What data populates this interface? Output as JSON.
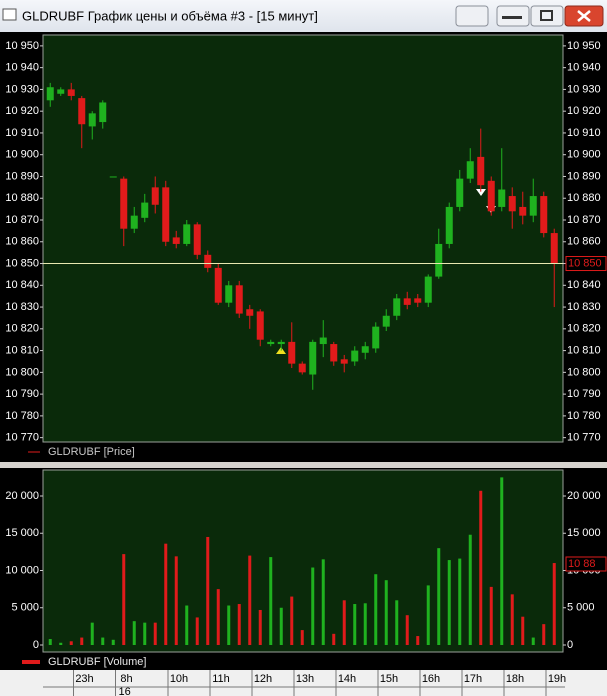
{
  "window": {
    "title": "GLDRUBF График цены и объёма #3 - [15 минут]"
  },
  "chart_data": [
    {
      "type": "candlestick",
      "legend": "GLDRUBF [Price]",
      "up_color": "#1fb21f",
      "down_color": "#e01b1b",
      "ylim": [
        10768,
        10955
      ],
      "yticks": [
        {
          "value": 10770,
          "label": "10 770"
        },
        {
          "value": 10780,
          "label": "10 780"
        },
        {
          "value": 10790,
          "label": "10 790"
        },
        {
          "value": 10800,
          "label": "10 800"
        },
        {
          "value": 10810,
          "label": "10 810"
        },
        {
          "value": 10820,
          "label": "10 820"
        },
        {
          "value": 10830,
          "label": "10 830"
        },
        {
          "value": 10840,
          "label": "10 840"
        },
        {
          "value": 10850,
          "label": "10 850"
        },
        {
          "value": 10860,
          "label": "10 860"
        },
        {
          "value": 10870,
          "label": "10 870"
        },
        {
          "value": 10880,
          "label": "10 880"
        },
        {
          "value": 10890,
          "label": "10 890"
        },
        {
          "value": 10900,
          "label": "10 900"
        },
        {
          "value": 10910,
          "label": "10 910"
        },
        {
          "value": 10920,
          "label": "10 920"
        },
        {
          "value": 10930,
          "label": "10 930"
        },
        {
          "value": 10940,
          "label": "10 940"
        },
        {
          "value": 10950,
          "label": "10 950"
        }
      ],
      "last_price": {
        "value": 10850,
        "label": "10 850"
      },
      "categories": [
        null,
        null,
        null,
        "23h",
        null,
        null,
        null,
        "8h",
        null,
        null,
        null,
        null,
        "10h",
        null,
        null,
        null,
        "11h",
        null,
        null,
        null,
        "12h",
        null,
        null,
        null,
        "13h",
        null,
        null,
        null,
        "14h",
        null,
        null,
        null,
        "15h",
        null,
        null,
        null,
        "16h",
        null,
        null,
        null,
        "17h",
        null,
        null,
        null,
        "18h",
        null,
        null,
        null,
        "19h"
      ],
      "dates": [
        null,
        null,
        null,
        null,
        null,
        null,
        null,
        "16",
        null,
        null,
        null,
        null,
        null,
        null,
        null,
        null,
        null,
        null,
        null,
        null,
        null,
        null,
        null,
        null,
        null,
        null,
        null,
        null,
        null,
        null,
        null,
        null,
        null,
        null,
        null,
        null,
        null,
        null,
        null,
        null,
        null,
        null,
        null,
        null,
        null,
        null,
        null,
        null,
        null
      ],
      "open": [
        10925,
        10928,
        10930,
        10926,
        10913,
        10915,
        10890,
        10889,
        10866,
        10871,
        10885,
        10885,
        10862,
        10859,
        10868,
        10854,
        10848,
        10832,
        10840,
        10829,
        10828,
        10813,
        10813,
        10814,
        10804,
        10799,
        10813,
        10813,
        10806,
        10805,
        10809,
        10811,
        10821,
        10826,
        10834,
        10834,
        10832,
        10844,
        10859,
        10876,
        10889,
        10899,
        10888,
        10876,
        10881,
        10876,
        10872,
        10881,
        10864
      ],
      "high": [
        10933,
        10931,
        10933,
        10927,
        10920,
        10925,
        10890,
        10890,
        10876,
        10882,
        10890,
        10888,
        10865,
        10870,
        10869,
        10856,
        10850,
        10842,
        10842,
        10831,
        10829,
        10815,
        10815,
        10823,
        10805,
        10815,
        10824,
        10814,
        10808,
        10812,
        10814,
        10823,
        10829,
        10836,
        10837,
        10836,
        10845,
        10866,
        10878,
        10893,
        10903,
        10912,
        10890,
        10903,
        10885,
        10883,
        10889,
        10883,
        10866
      ],
      "low": [
        10922,
        10927,
        10925,
        10903,
        10907,
        10912,
        10890,
        10858,
        10864,
        10869,
        10873,
        10858,
        10857,
        10858,
        10852,
        10846,
        10831,
        10830,
        10825,
        10820,
        10812,
        10812,
        10810,
        10802,
        10799,
        10792,
        10807,
        10803,
        10800,
        10803,
        10806,
        10809,
        10819,
        10824,
        10829,
        10830,
        10830,
        10843,
        10857,
        10874,
        10887,
        10883,
        10872,
        10874,
        10866,
        10868,
        10869,
        10862,
        10830
      ],
      "close": [
        10931,
        10930,
        10927,
        10914,
        10919,
        10924,
        10890,
        10866,
        10872,
        10878,
        10877,
        10860,
        10859,
        10868,
        10854,
        10848,
        10832,
        10840,
        10827,
        10826,
        10815,
        10814,
        10814,
        10804,
        10800,
        10814,
        10816,
        10805,
        10804,
        10810,
        10812,
        10821,
        10826,
        10834,
        10831,
        10832,
        10844,
        10859,
        10876,
        10889,
        10897,
        10886,
        10874,
        10884,
        10874,
        10872,
        10881,
        10864,
        10850
      ]
    },
    {
      "type": "bar",
      "legend": "GLDRUBF [Volume]",
      "annotation": "10 88",
      "ylim": [
        -940,
        23490
      ],
      "yticks": [
        0,
        {
          "value": 5000,
          "label": "5 000"
        },
        {
          "value": 10000,
          "label": "10 000"
        },
        {
          "value": 15000,
          "label": "15 000"
        },
        {
          "value": 20000,
          "label": "20 000"
        }
      ],
      "values": [
        800,
        300,
        500,
        1000,
        3000,
        1000,
        700,
        12200,
        3200,
        3000,
        3000,
        13600,
        11900,
        5300,
        3700,
        14500,
        7500,
        5300,
        5500,
        12000,
        4700,
        11800,
        5000,
        6500,
        2000,
        10400,
        11500,
        1500,
        6000,
        5500,
        5600,
        9500,
        8700,
        6000,
        4000,
        1200,
        8000,
        13000,
        11400,
        11600,
        14800,
        20700,
        7800,
        22500,
        6800,
        3800,
        1000,
        2800,
        11000
      ]
    }
  ]
}
